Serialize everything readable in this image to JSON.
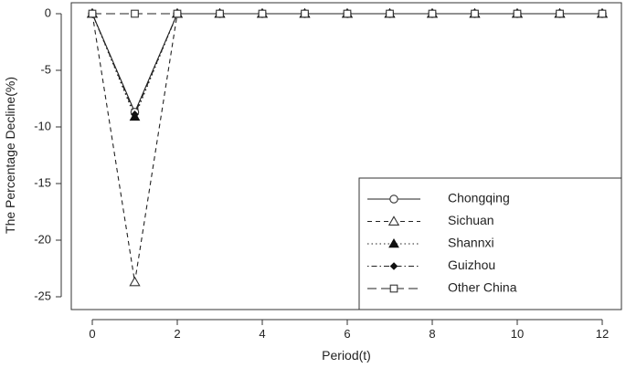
{
  "chart_data": {
    "type": "line",
    "title": "",
    "xlabel": "Period(t)",
    "ylabel": "The Percentage Decline(%)",
    "xlim": [
      0,
      12
    ],
    "ylim": [
      -25,
      0
    ],
    "xticks": [
      0,
      2,
      4,
      6,
      8,
      10,
      12
    ],
    "xtick_labels": [
      "0",
      "2",
      "4",
      "6",
      "8",
      "10",
      "12"
    ],
    "yticks": [
      0,
      -5,
      -10,
      -15,
      -20,
      -25
    ],
    "ytick_labels": [
      "0",
      "-5",
      "-10",
      "-15",
      "-20",
      "-25"
    ],
    "grid": false,
    "legend_position": "bottom-right",
    "x": [
      0,
      1,
      2,
      3,
      4,
      5,
      6,
      7,
      8,
      9,
      10,
      11,
      12
    ],
    "series": [
      {
        "name": "Chongqing",
        "line_style": "solid",
        "marker": "open-circle",
        "values": [
          0,
          -8.7,
          0,
          0,
          0,
          0,
          0,
          0,
          0,
          0,
          0,
          0,
          0
        ]
      },
      {
        "name": "Sichuan",
        "line_style": "dashed",
        "marker": "open-triangle",
        "values": [
          0,
          -23.7,
          0,
          0,
          0,
          0,
          0,
          0,
          0,
          0,
          0,
          0,
          0
        ]
      },
      {
        "name": "Shannxi",
        "line_style": "dotted",
        "marker": "filled-triangle",
        "values": [
          0,
          -9.1,
          0,
          0,
          0,
          0,
          0,
          0,
          0,
          0,
          0,
          0,
          0
        ]
      },
      {
        "name": "Guizhou",
        "line_style": "dotdash",
        "marker": "filled-diamond",
        "values": [
          0,
          -8.9,
          0,
          0,
          0,
          0,
          0,
          0,
          0,
          0,
          0,
          0,
          0
        ]
      },
      {
        "name": "Other China",
        "line_style": "longdash",
        "marker": "open-square",
        "values": [
          0,
          0,
          0,
          0,
          0,
          0,
          0,
          0,
          0,
          0,
          0,
          0,
          0
        ]
      }
    ]
  }
}
